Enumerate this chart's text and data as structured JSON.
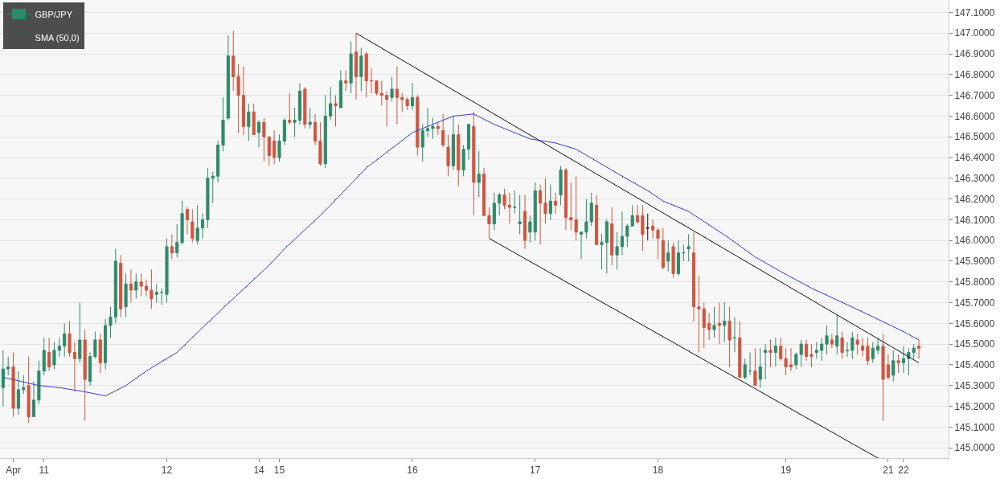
{
  "chart_data": {
    "type": "candlestick",
    "categories": [
      null,
      null,
      "Apr",
      null,
      null,
      null,
      null,
      null,
      "11",
      null,
      null,
      null,
      null,
      null,
      null,
      null,
      null,
      null,
      null,
      null,
      null,
      null,
      null,
      null,
      null,
      null,
      null,
      null,
      null,
      null,
      null,
      null,
      "12",
      null,
      null,
      null,
      null,
      null,
      null,
      null,
      null,
      null,
      null,
      null,
      null,
      null,
      null,
      null,
      null,
      null,
      "14",
      null,
      null,
      null,
      "15",
      null,
      null,
      null,
      null,
      null,
      null,
      null,
      null,
      null,
      null,
      null,
      null,
      null,
      null,
      null,
      null,
      null,
      null,
      null,
      null,
      null,
      null,
      null,
      null,
      null,
      "16",
      null,
      null,
      null,
      null,
      null,
      null,
      null,
      null,
      null,
      null,
      null,
      null,
      null,
      null,
      null,
      null,
      null,
      null,
      null,
      null,
      null,
      null,
      null,
      "17",
      null,
      null,
      null,
      null,
      null,
      null,
      null,
      null,
      null,
      null,
      null,
      null,
      null,
      null,
      null,
      null,
      null,
      null,
      null,
      null,
      null,
      null,
      null,
      "18",
      null,
      null,
      null,
      null,
      null,
      null,
      null,
      null,
      null,
      null,
      null,
      null,
      null,
      null,
      null,
      null,
      null,
      null,
      null,
      null,
      null,
      null,
      null,
      null,
      "19",
      null,
      null,
      null,
      null,
      null,
      null,
      null,
      null,
      null,
      null,
      null,
      null,
      null,
      null,
      null,
      null,
      null,
      null,
      null,
      "21",
      null,
      null,
      "22",
      null,
      null,
      null
    ],
    "ylim": [
      144.95,
      147.16
    ],
    "yticks": [
      {
        "value": 145.0,
        "label": "145.0000"
      },
      {
        "value": 145.1,
        "label": "145.1000"
      },
      {
        "value": 145.2,
        "label": "145.2000"
      },
      {
        "value": 145.3,
        "label": "145.3000"
      },
      {
        "value": 145.4,
        "label": "145.4000"
      },
      {
        "value": 145.5,
        "label": "145.5000"
      },
      {
        "value": 145.6,
        "label": "145.6000"
      },
      {
        "value": 145.7,
        "label": "145.7000"
      },
      {
        "value": 145.8,
        "label": "145.8000"
      },
      {
        "value": 145.9,
        "label": "145.9000"
      },
      {
        "value": 146.0,
        "label": "146.0000"
      },
      {
        "value": 146.1,
        "label": "146.1000"
      },
      {
        "value": 146.2,
        "label": "146.2000"
      },
      {
        "value": 146.3,
        "label": "146.3000"
      },
      {
        "value": 146.4,
        "label": "146.4000"
      },
      {
        "value": 146.5,
        "label": "146.5000"
      },
      {
        "value": 146.6,
        "label": "146.6000"
      },
      {
        "value": 146.7,
        "label": "146.7000"
      },
      {
        "value": 146.8,
        "label": "146.8000"
      },
      {
        "value": 146.9,
        "label": "146.9000"
      },
      {
        "value": 147.0,
        "label": "147.0000"
      },
      {
        "value": 147.1,
        "label": "147.1000"
      }
    ],
    "grid": "y",
    "legend": "top left",
    "series": [
      {
        "name": "GBP/JPY",
        "colors": [
          "#2f8a6a",
          "#2f8a6a",
          "#d1553f",
          "#2f8a6a",
          "#2f8a6a",
          "#d1553f",
          "#2f8a6a",
          "#2f8a6a",
          "#2f8a6a",
          "#d1553f",
          "#2f8a6a",
          "#2f8a6a",
          "#2f8a6a",
          "#d1553f",
          "#d1553f",
          "#2f8a6a",
          "#d1553f",
          "#2f8a6a",
          "#2f8a6a",
          "#d1553f",
          "#2f8a6a",
          "#2f8a6a",
          "#2f8a6a",
          "#d1553f",
          "#2f8a6a",
          "#d1553f",
          "#2f8a6a",
          "#d1553f",
          "#d1553f",
          "#d1553f",
          "#2f8a6a",
          "#2f8a6a",
          "#2f8a6a",
          "#d1553f",
          "#2f8a6a",
          "#2f8a6a",
          "#d1553f",
          "#d1553f",
          "#2f8a6a",
          "#2f8a6a",
          "#2f8a6a",
          "#2f8a6a",
          "#2f8a6a",
          "#2f8a6a",
          "#2f8a6a",
          "#d1553f",
          "#d1553f",
          "#d1553f",
          "#2f8a6a",
          "#d1553f",
          "#2f8a6a",
          "#d1553f",
          "#d1553f",
          "#d1553f",
          "#2f8a6a",
          "#2f8a6a",
          "#d1553f",
          "#2f8a6a",
          "#2f8a6a",
          "#d1553f",
          "#2f8a6a",
          "#d1553f",
          "#d1553f",
          "#2f8a6a",
          "#2f8a6a",
          "#d1553f",
          "#2f8a6a",
          "#d1553f",
          "#2f8a6a",
          "#d1553f",
          "#2f8a6a",
          "#d1553f",
          "#d1553f",
          "#d1553f",
          "#d1553f",
          "#d1553f",
          "#2f8a6a",
          "#d1553f",
          "#d1553f",
          "#d1553f",
          "#2f8a6a",
          "#d1553f",
          "#2f8a6a",
          "#2f8a6a",
          "#2f8a6a",
          "#d1553f",
          "#d1553f",
          "#d1553f",
          "#2f8a6a",
          "#d1553f",
          "#2f8a6a",
          "#2f8a6a",
          "#d1553f",
          "#2f8a6a",
          "#d1553f",
          "#d1553f",
          "#2f8a6a",
          "#2f8a6a",
          "#d1553f",
          "#d1553f",
          "#2f8a6a",
          "#2f8a6a",
          "#d1553f",
          "#2f8a6a",
          "#2f8a6a",
          "#d1553f",
          "#d1553f",
          "#2f8a6a",
          "#d1553f",
          "#2f8a6a",
          "#d1553f",
          "#d1553f",
          "#d1553f",
          "#2f8a6a",
          "#2f8a6a",
          "#2f8a6a",
          "#d1553f",
          "#2f8a6a",
          "#2f8a6a",
          "#d1553f",
          "#2f8a6a",
          "#2f8a6a",
          "#2f8a6a",
          "#2f8a6a",
          "#d1553f",
          "#d1553f",
          "#111111",
          "#d1553f",
          "#d1553f",
          "#d1553f",
          "#2f8a6a",
          "#d1553f",
          "#2f8a6a",
          "#2f8a6a",
          "#2f8a6a",
          "#d1553f",
          "#d1553f",
          "#d1553f",
          "#d1553f",
          "#2f8a6a",
          "#d1553f",
          "#2f8a6a",
          "#d1553f",
          "#2f8a6a",
          "#d1553f",
          "#2f8a6a",
          "#2f8a6a",
          "#d1553f",
          "#2f8a6a",
          "#2f8a6a",
          "#d1553f",
          "#2f8a6a",
          "#d1553f",
          "#d1553f",
          "#d1553f",
          "#2f8a6a",
          "#2f8a6a",
          "#d1553f",
          "#d1553f",
          "#2f8a6a",
          "#2f8a6a",
          "#2f8a6a",
          "#d1553f",
          "#2f8a6a",
          "#d1553f",
          "#2f8a6a",
          "#2f8a6a",
          "#d1553f",
          "#d1553f",
          "#d1553f",
          "#2f8a6a",
          "#2f8a6a",
          "#d1553f",
          "#d1553f",
          "#2f8a6a",
          "#d1553f",
          "#2f8a6a",
          "#2f8a6a",
          "#2f8a6a",
          "#d1553f"
        ],
        "ohlc": [
          [
            145.29,
            145.47,
            145.2,
            145.38
          ],
          [
            145.38,
            145.44,
            145.35,
            145.39
          ],
          [
            145.39,
            145.46,
            145.15,
            145.19
          ],
          [
            145.19,
            145.37,
            145.16,
            145.28
          ],
          [
            145.28,
            145.35,
            145.26,
            145.29
          ],
          [
            145.3,
            145.44,
            145.12,
            145.15
          ],
          [
            145.15,
            145.32,
            145.15,
            145.23
          ],
          [
            145.23,
            145.42,
            145.21,
            145.37
          ],
          [
            145.37,
            145.53,
            145.35,
            145.47
          ],
          [
            145.46,
            145.53,
            145.37,
            145.39
          ],
          [
            145.4,
            145.51,
            145.38,
            145.47
          ],
          [
            145.47,
            145.53,
            145.44,
            145.49
          ],
          [
            145.49,
            145.6,
            145.44,
            145.55
          ],
          [
            145.55,
            145.61,
            145.44,
            145.46
          ],
          [
            145.46,
            145.51,
            145.27,
            145.43
          ],
          [
            145.43,
            145.7,
            145.41,
            145.52
          ],
          [
            145.52,
            145.57,
            145.13,
            145.33
          ],
          [
            145.32,
            145.46,
            145.3,
            145.44
          ],
          [
            145.44,
            145.56,
            145.43,
            145.52
          ],
          [
            145.52,
            145.55,
            145.36,
            145.41
          ],
          [
            145.41,
            145.62,
            145.38,
            145.59
          ],
          [
            145.59,
            145.68,
            145.53,
            145.63
          ],
          [
            145.63,
            145.96,
            145.6,
            145.9
          ],
          [
            145.89,
            145.93,
            145.63,
            145.67
          ],
          [
            145.68,
            145.84,
            145.63,
            145.79
          ],
          [
            145.79,
            145.86,
            145.7,
            145.76
          ],
          [
            145.76,
            145.84,
            145.72,
            145.8
          ],
          [
            145.8,
            145.84,
            145.73,
            145.78
          ],
          [
            145.78,
            145.81,
            145.73,
            145.76
          ],
          [
            145.76,
            145.86,
            145.67,
            145.72
          ],
          [
            145.74,
            145.79,
            145.7,
            145.75
          ],
          [
            145.75,
            145.77,
            145.69,
            145.75
          ],
          [
            145.74,
            146.01,
            145.7,
            145.97
          ],
          [
            145.97,
            146.03,
            145.91,
            145.94
          ],
          [
            145.94,
            146.08,
            145.92,
            145.99
          ],
          [
            145.99,
            146.19,
            145.98,
            146.13
          ],
          [
            146.15,
            146.16,
            146.03,
            146.1
          ],
          [
            146.09,
            146.15,
            145.99,
            146.01
          ],
          [
            146.0,
            146.17,
            145.98,
            146.06
          ],
          [
            146.06,
            146.13,
            146.01,
            146.1
          ],
          [
            146.1,
            146.35,
            146.06,
            146.3
          ],
          [
            146.3,
            146.33,
            146.18,
            146.31
          ],
          [
            146.31,
            146.48,
            146.28,
            146.46
          ],
          [
            146.46,
            146.69,
            146.43,
            146.58
          ],
          [
            146.59,
            146.99,
            146.58,
            146.89
          ],
          [
            146.89,
            147.01,
            146.72,
            146.79
          ],
          [
            146.79,
            146.85,
            146.52,
            146.7
          ],
          [
            146.7,
            146.84,
            146.51,
            146.55
          ],
          [
            146.55,
            146.66,
            146.48,
            146.62
          ],
          [
            146.62,
            146.66,
            146.51,
            146.51
          ],
          [
            146.52,
            146.58,
            146.45,
            146.57
          ],
          [
            146.57,
            146.59,
            146.38,
            146.5
          ],
          [
            146.5,
            146.5,
            146.36,
            146.41
          ],
          [
            146.48,
            146.53,
            146.37,
            146.4
          ],
          [
            146.4,
            146.51,
            146.38,
            146.48
          ],
          [
            146.48,
            146.59,
            146.46,
            146.58
          ],
          [
            146.58,
            146.71,
            146.56,
            146.57
          ],
          [
            146.57,
            146.64,
            146.5,
            146.58
          ],
          [
            146.58,
            146.76,
            146.56,
            146.72
          ],
          [
            146.73,
            146.74,
            146.54,
            146.56
          ],
          [
            146.56,
            146.64,
            146.54,
            146.57
          ],
          [
            146.57,
            146.61,
            146.46,
            146.48
          ],
          [
            146.48,
            146.57,
            146.36,
            146.37
          ],
          [
            146.37,
            146.7,
            146.35,
            146.6
          ],
          [
            146.6,
            146.74,
            146.58,
            146.66
          ],
          [
            146.66,
            146.7,
            146.55,
            146.65
          ],
          [
            146.64,
            146.82,
            146.64,
            146.77
          ],
          [
            146.77,
            146.82,
            146.72,
            146.76
          ],
          [
            146.76,
            146.96,
            146.71,
            146.9
          ],
          [
            146.91,
            147.0,
            146.68,
            146.79
          ],
          [
            146.79,
            146.93,
            146.72,
            146.89
          ],
          [
            146.9,
            146.91,
            146.69,
            146.77
          ],
          [
            146.77,
            146.83,
            146.71,
            146.77
          ],
          [
            146.77,
            146.77,
            146.7,
            146.71
          ],
          [
            146.71,
            146.77,
            146.65,
            146.7
          ],
          [
            146.7,
            146.72,
            146.55,
            146.68
          ],
          [
            146.69,
            146.79,
            146.67,
            146.73
          ],
          [
            146.73,
            146.84,
            146.56,
            146.69
          ],
          [
            146.69,
            146.71,
            146.62,
            146.68
          ],
          [
            146.68,
            146.69,
            146.63,
            146.65
          ],
          [
            146.65,
            146.76,
            146.63,
            146.69
          ],
          [
            146.69,
            146.7,
            146.41,
            146.45
          ],
          [
            146.45,
            146.56,
            146.38,
            146.53
          ],
          [
            146.53,
            146.64,
            146.5,
            146.54
          ],
          [
            146.54,
            146.59,
            146.49,
            146.55
          ],
          [
            146.55,
            146.57,
            146.51,
            146.54
          ],
          [
            146.53,
            146.61,
            146.45,
            146.46
          ],
          [
            146.45,
            146.51,
            146.31,
            146.36
          ],
          [
            146.36,
            146.6,
            146.34,
            146.51
          ],
          [
            146.51,
            146.56,
            146.26,
            146.34
          ],
          [
            146.34,
            146.46,
            146.31,
            146.44
          ],
          [
            146.44,
            146.56,
            146.39,
            146.56
          ],
          [
            146.55,
            146.62,
            146.12,
            146.28
          ],
          [
            146.28,
            146.43,
            146.21,
            146.32
          ],
          [
            146.32,
            146.35,
            146.12,
            146.12
          ],
          [
            146.12,
            146.16,
            146.01,
            146.08
          ],
          [
            146.08,
            146.23,
            146.05,
            146.18
          ],
          [
            146.18,
            146.23,
            146.12,
            146.22
          ],
          [
            146.22,
            146.25,
            146.15,
            146.17
          ],
          [
            146.17,
            146.23,
            146.08,
            146.16
          ],
          [
            146.16,
            146.24,
            146.13,
            146.16
          ],
          [
            146.08,
            146.22,
            146.03,
            146.09
          ],
          [
            146.14,
            146.22,
            145.96,
            146.0
          ],
          [
            146.04,
            146.12,
            145.99,
            146.09
          ],
          [
            146.04,
            146.28,
            146.0,
            146.24
          ],
          [
            146.24,
            146.27,
            145.98,
            146.18
          ],
          [
            146.18,
            146.3,
            146.08,
            146.13
          ],
          [
            146.13,
            146.27,
            146.1,
            146.19
          ],
          [
            146.19,
            146.23,
            146.13,
            146.17
          ],
          [
            146.22,
            146.36,
            146.17,
            146.34
          ],
          [
            146.34,
            146.35,
            146.05,
            146.11
          ],
          [
            146.11,
            146.28,
            146.05,
            146.1
          ],
          [
            146.1,
            146.31,
            146.0,
            146.04
          ],
          [
            146.03,
            146.04,
            145.91,
            146.04
          ],
          [
            146.04,
            146.2,
            146.01,
            146.09
          ],
          [
            146.09,
            146.23,
            146.07,
            146.18
          ],
          [
            146.17,
            146.22,
            145.98,
            145.98
          ],
          [
            145.98,
            146.03,
            145.86,
            145.99
          ],
          [
            145.99,
            146.1,
            145.84,
            146.09
          ],
          [
            146.08,
            146.16,
            145.88,
            145.93
          ],
          [
            145.93,
            146.04,
            145.86,
            145.97
          ],
          [
            145.97,
            146.14,
            145.93,
            146.02
          ],
          [
            146.02,
            146.08,
            145.97,
            146.07
          ],
          [
            146.07,
            146.17,
            146.07,
            146.12
          ],
          [
            146.12,
            146.17,
            146.08,
            146.09
          ],
          [
            146.12,
            146.17,
            145.95,
            146.03
          ],
          [
            146.06,
            146.13,
            146.0,
            146.06
          ],
          [
            146.07,
            146.1,
            146.01,
            146.05
          ],
          [
            146.05,
            146.06,
            145.91,
            146.01
          ],
          [
            146.0,
            146.06,
            145.86,
            145.87
          ],
          [
            145.9,
            146.0,
            145.85,
            145.94
          ],
          [
            145.97,
            145.99,
            145.82,
            145.84
          ],
          [
            145.84,
            146.0,
            145.83,
            145.94
          ],
          [
            145.94,
            145.98,
            145.9,
            145.94
          ],
          [
            145.96,
            146.03,
            145.9,
            145.97
          ],
          [
            145.94,
            146.04,
            145.61,
            145.68
          ],
          [
            145.68,
            145.83,
            145.46,
            145.67
          ],
          [
            145.67,
            145.7,
            145.48,
            145.58
          ],
          [
            145.6,
            145.65,
            145.52,
            145.57
          ],
          [
            145.57,
            145.68,
            145.53,
            145.59
          ],
          [
            145.6,
            145.7,
            145.5,
            145.59
          ],
          [
            145.59,
            145.7,
            145.51,
            145.61
          ],
          [
            145.61,
            145.68,
            145.39,
            145.52
          ],
          [
            145.53,
            145.63,
            145.46,
            145.53
          ],
          [
            145.53,
            145.61,
            145.34,
            145.34
          ],
          [
            145.34,
            145.43,
            145.33,
            145.4
          ],
          [
            145.37,
            145.46,
            145.35,
            145.37
          ],
          [
            145.37,
            145.48,
            145.3,
            145.3
          ],
          [
            145.33,
            145.48,
            145.29,
            145.39
          ],
          [
            145.46,
            145.5,
            145.33,
            145.47
          ],
          [
            145.47,
            145.52,
            145.39,
            145.46
          ],
          [
            145.46,
            145.53,
            145.39,
            145.49
          ],
          [
            145.49,
            145.53,
            145.42,
            145.43
          ],
          [
            145.43,
            145.48,
            145.35,
            145.39
          ],
          [
            145.4,
            145.48,
            145.37,
            145.39
          ],
          [
            145.4,
            145.46,
            145.38,
            145.45
          ],
          [
            145.45,
            145.52,
            145.39,
            145.5
          ],
          [
            145.5,
            145.52,
            145.42,
            145.44
          ],
          [
            145.45,
            145.5,
            145.39,
            145.44
          ],
          [
            145.46,
            145.51,
            145.43,
            145.47
          ],
          [
            145.47,
            145.53,
            145.42,
            145.5
          ],
          [
            145.5,
            145.59,
            145.45,
            145.54
          ],
          [
            145.52,
            145.55,
            145.48,
            145.5
          ],
          [
            145.49,
            145.64,
            145.45,
            145.54
          ],
          [
            145.53,
            145.56,
            145.43,
            145.46
          ],
          [
            145.47,
            145.51,
            145.44,
            145.47
          ],
          [
            145.47,
            145.56,
            145.43,
            145.53
          ],
          [
            145.52,
            145.55,
            145.45,
            145.5
          ],
          [
            145.49,
            145.53,
            145.44,
            145.47
          ],
          [
            145.49,
            145.53,
            145.4,
            145.42
          ],
          [
            145.43,
            145.51,
            145.41,
            145.48
          ],
          [
            145.47,
            145.53,
            145.45,
            145.49
          ],
          [
            145.49,
            145.55,
            145.13,
            145.33
          ],
          [
            145.4,
            145.45,
            145.33,
            145.34
          ],
          [
            145.35,
            145.47,
            145.32,
            145.42
          ],
          [
            145.42,
            145.45,
            145.36,
            145.41
          ],
          [
            145.41,
            145.49,
            145.36,
            145.43
          ],
          [
            145.43,
            145.48,
            145.35,
            145.46
          ],
          [
            145.46,
            145.5,
            145.43,
            145.48
          ],
          [
            145.49,
            145.52,
            145.43,
            145.48
          ]
        ]
      },
      {
        "name": "SMA (50,0)",
        "type": "line",
        "color": "#3b3bd6",
        "values": [
          145.34,
          null,
          null,
          null,
          null,
          null,
          null,
          145.3,
          null,
          null,
          null,
          145.29,
          null,
          null,
          null,
          null,
          145.27,
          null,
          null,
          null,
          145.25,
          null,
          null,
          null,
          145.3,
          null,
          null,
          null,
          145.37,
          null,
          null,
          null,
          null,
          null,
          145.46,
          null,
          null,
          null,
          null,
          145.58,
          null,
          null,
          null,
          null,
          null,
          145.72,
          null,
          null,
          null,
          null,
          null,
          null,
          145.88,
          null,
          null,
          145.96,
          null,
          null,
          null,
          null,
          null,
          null,
          146.12,
          null,
          146.17,
          null,
          null,
          null,
          null,
          null,
          null,
          146.35,
          null,
          null,
          null,
          null,
          null,
          null,
          null,
          null,
          146.52,
          null,
          null,
          null,
          null,
          null,
          null,
          null,
          146.6,
          null,
          null,
          null,
          146.61,
          null,
          null,
          null,
          146.56,
          null,
          null,
          null,
          null,
          null,
          null,
          146.49,
          null,
          null,
          null,
          null,
          146.47,
          null,
          null,
          null,
          146.44,
          null,
          null,
          null,
          null,
          null,
          null,
          null,
          null,
          146.31,
          null,
          null,
          null,
          null,
          146.24,
          null,
          null,
          146.19,
          null,
          null,
          null,
          null,
          146.14,
          null,
          null,
          null,
          null,
          null,
          null,
          null,
          146.01,
          null,
          null,
          null,
          null,
          145.92,
          null,
          null,
          null,
          null,
          145.85,
          null,
          null,
          null,
          null,
          null,
          145.77,
          null,
          null,
          null,
          null,
          null,
          null,
          145.69,
          null,
          null,
          null,
          null,
          null,
          145.62,
          null,
          null,
          null,
          null,
          145.56,
          null,
          null,
          145.52
        ]
      },
      {
        "type": "line",
        "color": "#111111",
        "values": [
          null,
          null,
          null,
          null,
          null,
          null,
          null,
          null,
          null,
          null,
          null,
          null,
          null,
          null,
          null,
          null,
          null,
          null,
          null,
          null,
          null,
          null,
          null,
          null,
          null,
          null,
          null,
          null,
          null,
          null,
          null,
          null,
          null,
          null,
          null,
          null,
          null,
          null,
          null,
          null,
          null,
          null,
          null,
          null,
          null,
          null,
          null,
          null,
          null,
          null,
          null,
          null,
          null,
          null,
          null,
          null,
          null,
          null,
          null,
          null,
          null,
          null,
          null,
          null,
          null,
          null,
          null,
          null,
          null,
          147.0,
          null,
          null,
          null,
          null,
          null,
          null,
          null,
          null,
          null,
          null,
          null,
          null,
          null,
          null,
          null,
          null,
          null,
          null,
          null,
          null,
          null,
          null,
          null,
          null,
          null,
          null,
          null,
          null,
          null,
          null,
          null,
          null,
          null,
          null,
          null,
          null,
          null,
          null,
          null,
          null,
          null,
          null,
          null,
          null,
          null,
          null,
          null,
          null,
          null,
          null,
          null,
          null,
          null,
          null,
          null,
          null,
          null,
          null,
          null,
          null,
          null,
          null,
          null,
          null,
          null,
          null,
          null,
          null,
          null,
          null,
          null,
          null,
          null,
          null,
          null,
          null,
          null,
          null,
          null,
          null,
          null,
          null,
          null,
          null,
          null,
          null,
          null,
          null,
          null,
          null,
          null,
          null,
          null,
          null,
          null,
          null,
          null,
          null,
          null,
          null,
          null,
          null,
          null,
          null,
          null,
          null,
          null,
          null,
          null,
          145.41
        ]
      },
      {
        "type": "line",
        "color": "#111111",
        "values": [
          null,
          null,
          null,
          null,
          null,
          null,
          null,
          null,
          null,
          null,
          null,
          null,
          null,
          null,
          null,
          null,
          null,
          null,
          null,
          null,
          null,
          null,
          null,
          null,
          null,
          null,
          null,
          null,
          null,
          null,
          null,
          null,
          null,
          null,
          null,
          null,
          null,
          null,
          null,
          null,
          null,
          null,
          null,
          null,
          null,
          null,
          null,
          null,
          null,
          null,
          null,
          null,
          null,
          null,
          null,
          null,
          null,
          null,
          null,
          null,
          null,
          null,
          null,
          null,
          null,
          null,
          null,
          null,
          null,
          null,
          null,
          null,
          null,
          null,
          null,
          null,
          null,
          null,
          null,
          null,
          null,
          null,
          null,
          null,
          null,
          null,
          null,
          null,
          null,
          null,
          null,
          null,
          null,
          null,
          null,
          146.01,
          null,
          null,
          null,
          null,
          null,
          null,
          null,
          null,
          null,
          null,
          null,
          null,
          null,
          null,
          null,
          null,
          null,
          null,
          null,
          null,
          null,
          null,
          null,
          null,
          null,
          null,
          null,
          null,
          null,
          null,
          null,
          null,
          null,
          null,
          null,
          null,
          null,
          null,
          null,
          null,
          null,
          null,
          null,
          null,
          null,
          null,
          null,
          null,
          null,
          null,
          null,
          null,
          null,
          null,
          null,
          null,
          null,
          null,
          null,
          null,
          null,
          null,
          null,
          null,
          null,
          null,
          null,
          null,
          null,
          null,
          null,
          null,
          null,
          null,
          null,
          144.95,
          null,
          null,
          null,
          null,
          null,
          null,
          null,
          null
        ]
      }
    ]
  }
}
